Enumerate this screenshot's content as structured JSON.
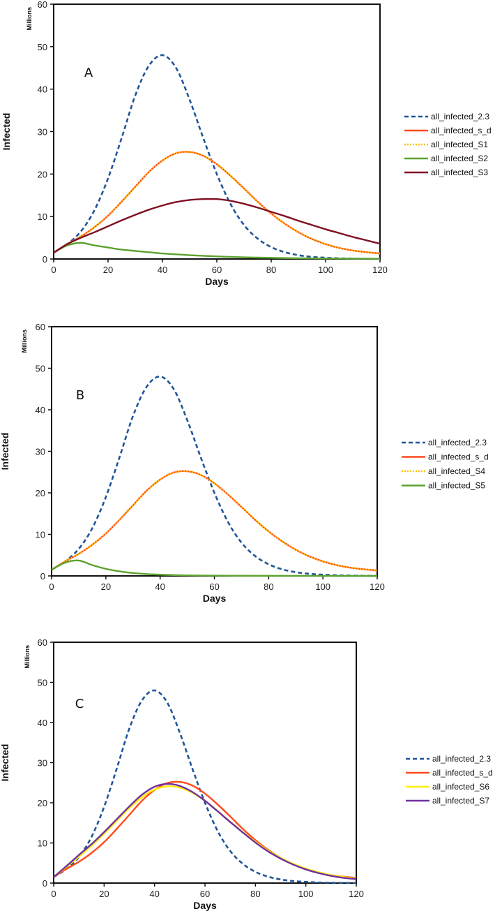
{
  "chart_data": [
    {
      "type": "line",
      "panel_label": "A",
      "xlabel": "Days",
      "ylabel": "Infected",
      "yunit": "Millions",
      "xlim": [
        0,
        120
      ],
      "ylim": [
        0,
        60
      ],
      "xticks": [
        0,
        20,
        40,
        60,
        80,
        100,
        120
      ],
      "yticks": [
        0,
        10,
        20,
        30,
        40,
        50,
        60
      ],
      "grid": false,
      "legend_position": "right",
      "x": [
        0,
        5,
        10,
        15,
        20,
        25,
        30,
        35,
        40,
        45,
        50,
        55,
        60,
        65,
        70,
        75,
        80,
        85,
        90,
        95,
        100,
        105,
        110,
        115,
        120
      ],
      "series": [
        {
          "name": "all_infected_2.3",
          "color": "#1f5597",
          "style": "dashed",
          "values": [
            1.5,
            3.5,
            6.5,
            11.5,
            19,
            28.5,
            38.5,
            45.5,
            48,
            45,
            37.5,
            28.5,
            20,
            13,
            8,
            4.8,
            2.8,
            1.6,
            0.9,
            0.5,
            0.3,
            0.15,
            0.08,
            0.04,
            0.02
          ]
        },
        {
          "name": "all_infected_s_d",
          "color": "#ff4a1c",
          "style": "solid",
          "values": [
            1.5,
            3.5,
            5.3,
            7.5,
            10.2,
            13.5,
            17,
            20.5,
            23.2,
            24.9,
            25.2,
            24.3,
            22.3,
            19.6,
            16.6,
            13.5,
            10.7,
            8.3,
            6.3,
            4.7,
            3.5,
            2.6,
            2.0,
            1.6,
            1.3
          ]
        },
        {
          "name": "all_infected_S1",
          "color": "#ffc000",
          "style": "dotted",
          "values": [
            1.5,
            3.5,
            5.3,
            7.5,
            10.2,
            13.5,
            17,
            20.5,
            23.2,
            24.9,
            25.2,
            24.3,
            22.3,
            19.6,
            16.6,
            13.5,
            10.7,
            8.3,
            6.3,
            4.7,
            3.5,
            2.6,
            2.0,
            1.6,
            1.3
          ]
        },
        {
          "name": "all_infected_S2",
          "color": "#5ca22f",
          "style": "solid",
          "values": [
            1.5,
            3.2,
            3.8,
            3.2,
            2.7,
            2.2,
            1.9,
            1.6,
            1.3,
            1.1,
            0.9,
            0.75,
            0.6,
            0.5,
            0.4,
            0.33,
            0.27,
            0.22,
            0.18,
            0.15,
            0.12,
            0.1,
            0.08,
            0.07,
            0.05
          ]
        },
        {
          "name": "all_infected_S3",
          "color": "#7f0f22",
          "style": "solid",
          "values": [
            1.5,
            3.5,
            5.0,
            6.3,
            7.7,
            9.1,
            10.4,
            11.6,
            12.6,
            13.4,
            13.9,
            14.1,
            14.1,
            13.7,
            13.0,
            12.1,
            11.1,
            10.1,
            9.0,
            8.0,
            7.0,
            6.1,
            5.2,
            4.4,
            3.6
          ]
        }
      ]
    },
    {
      "type": "line",
      "panel_label": "B",
      "xlabel": "Days",
      "ylabel": "Infected",
      "yunit": "Millions",
      "xlim": [
        0,
        120
      ],
      "ylim": [
        0,
        60
      ],
      "xticks": [
        0,
        20,
        40,
        60,
        80,
        100,
        120
      ],
      "yticks": [
        0,
        10,
        20,
        30,
        40,
        50,
        60
      ],
      "grid": false,
      "legend_position": "right",
      "x": [
        0,
        5,
        10,
        15,
        20,
        25,
        30,
        35,
        40,
        45,
        50,
        55,
        60,
        65,
        70,
        75,
        80,
        85,
        90,
        95,
        100,
        105,
        110,
        115,
        120
      ],
      "series": [
        {
          "name": "all_infected_2.3",
          "color": "#1f5597",
          "style": "dashed",
          "values": [
            1.5,
            3.5,
            6.5,
            11.5,
            19,
            28.5,
            38.5,
            45.5,
            48,
            45,
            37.5,
            28.5,
            20,
            13,
            8,
            4.8,
            2.8,
            1.6,
            0.9,
            0.5,
            0.3,
            0.15,
            0.08,
            0.04,
            0.02
          ]
        },
        {
          "name": "all_infected_s_d",
          "color": "#ff4a1c",
          "style": "solid",
          "values": [
            1.5,
            3.5,
            5.3,
            7.5,
            10.2,
            13.5,
            17,
            20.5,
            23.2,
            24.9,
            25.2,
            24.3,
            22.3,
            19.6,
            16.6,
            13.5,
            10.7,
            8.3,
            6.3,
            4.7,
            3.5,
            2.6,
            2.0,
            1.6,
            1.3
          ]
        },
        {
          "name": "all_infected_S4",
          "color": "#ffc000",
          "style": "dotted",
          "values": [
            1.5,
            3.5,
            5.3,
            7.5,
            10.2,
            13.5,
            17,
            20.5,
            23.2,
            24.9,
            25.2,
            24.3,
            22.3,
            19.6,
            16.6,
            13.5,
            10.7,
            8.3,
            6.3,
            4.7,
            3.5,
            2.6,
            2.0,
            1.6,
            1.3
          ]
        },
        {
          "name": "all_infected_S5",
          "color": "#5ca22f",
          "style": "solid",
          "values": [
            1.5,
            3.2,
            3.7,
            2.6,
            1.7,
            1.1,
            0.7,
            0.45,
            0.3,
            0.2,
            0.14,
            0.1,
            0.07,
            0.05,
            0.04,
            0.03,
            0.02,
            0.02,
            0.01,
            0.01,
            0.01,
            0.0,
            0.0,
            0.0,
            0.0
          ]
        }
      ]
    },
    {
      "type": "line",
      "panel_label": "C",
      "xlabel": "Days",
      "ylabel": "Infected",
      "yunit": "Millions",
      "xlim": [
        0,
        120
      ],
      "ylim": [
        0,
        60
      ],
      "xticks": [
        0,
        20,
        40,
        60,
        80,
        100,
        120
      ],
      "yticks": [
        0,
        10,
        20,
        30,
        40,
        50,
        60
      ],
      "grid": false,
      "legend_position": "right",
      "x": [
        0,
        5,
        10,
        15,
        20,
        25,
        30,
        35,
        40,
        45,
        50,
        55,
        60,
        65,
        70,
        75,
        80,
        85,
        90,
        95,
        100,
        105,
        110,
        115,
        120
      ],
      "series": [
        {
          "name": "all_infected_2.3",
          "color": "#1f5597",
          "style": "dashed",
          "values": [
            1.5,
            3.5,
            6.5,
            11.5,
            19,
            28.5,
            38.5,
            45.5,
            48,
            45,
            37.5,
            28.5,
            20,
            13,
            8,
            4.8,
            2.8,
            1.6,
            0.9,
            0.5,
            0.3,
            0.15,
            0.08,
            0.04,
            0.02
          ]
        },
        {
          "name": "all_infected_s_d",
          "color": "#ff4a1c",
          "style": "solid",
          "values": [
            1.5,
            3.5,
            5.3,
            7.5,
            10.2,
            13.5,
            17,
            20.5,
            23.2,
            24.9,
            25.2,
            24.3,
            22.3,
            19.6,
            16.6,
            13.5,
            10.7,
            8.3,
            6.3,
            4.7,
            3.5,
            2.6,
            2.0,
            1.6,
            1.3
          ]
        },
        {
          "name": "all_infected_S6",
          "color": "#ffee00",
          "style": "solid",
          "values": [
            1.5,
            4.0,
            6.6,
            9.3,
            12.3,
            15.5,
            18.7,
            21.4,
            23.3,
            24.1,
            23.8,
            22.5,
            20.5,
            18.0,
            15.3,
            12.7,
            10.3,
            8.1,
            6.3,
            4.8,
            3.6,
            2.7,
            2.0,
            1.5,
            1.1
          ]
        },
        {
          "name": "all_infected_S7",
          "color": "#7030a0",
          "style": "solid",
          "values": [
            1.5,
            4.2,
            7.0,
            9.7,
            12.7,
            15.9,
            19.1,
            22.0,
            24.0,
            24.7,
            24.2,
            22.7,
            20.5,
            17.9,
            15.2,
            12.6,
            10.1,
            7.9,
            6.1,
            4.6,
            3.4,
            2.5,
            1.8,
            1.3,
            1.0
          ]
        }
      ]
    }
  ]
}
